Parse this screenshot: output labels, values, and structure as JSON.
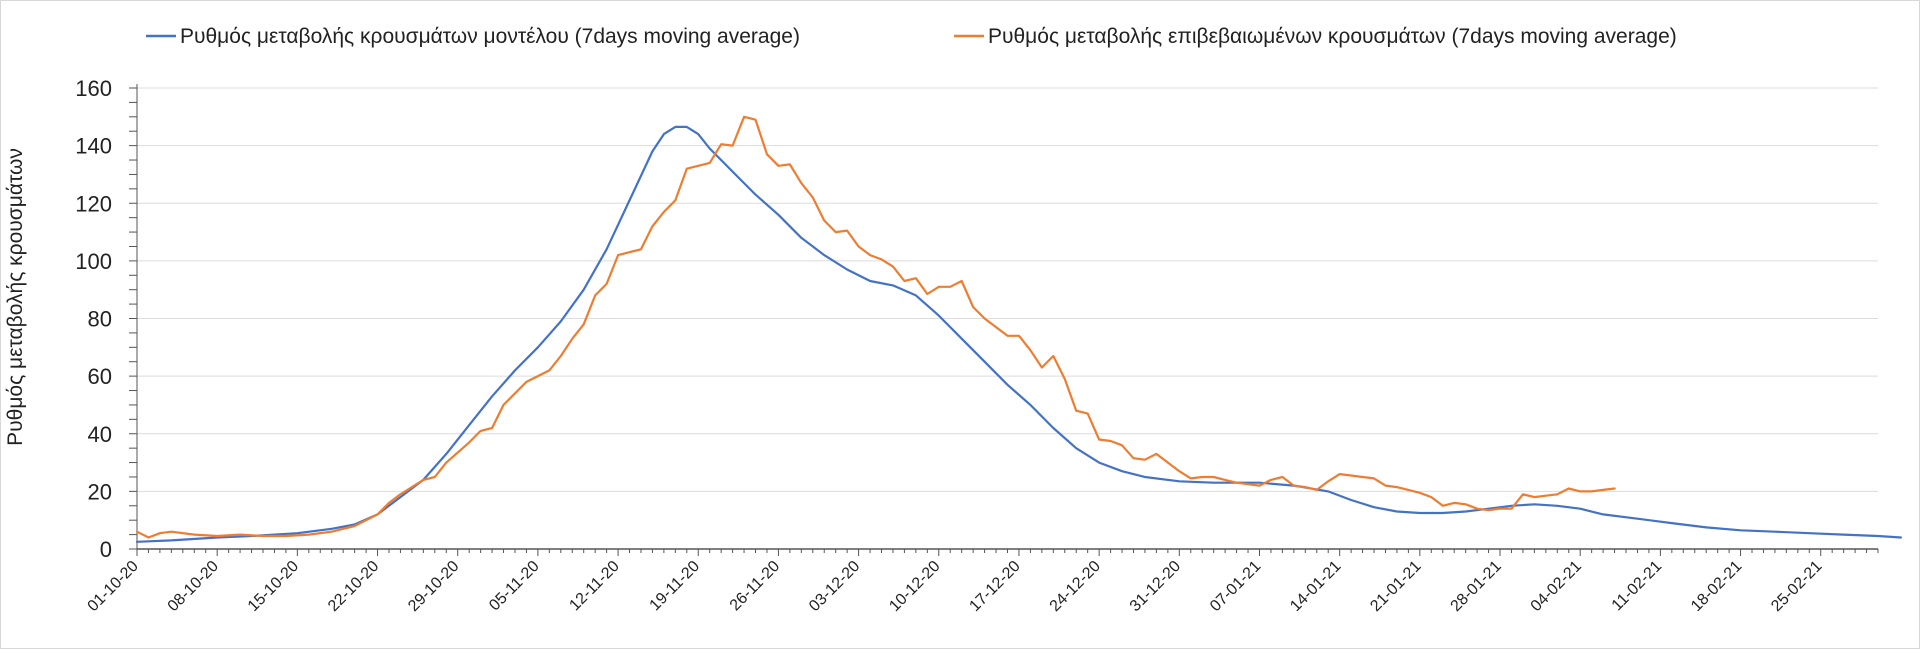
{
  "chart_data": {
    "type": "line",
    "title": "",
    "xlabel": "",
    "ylabel": "Ρυθμός μεταβολής κρουσμάτων",
    "ylim": [
      0,
      160
    ],
    "yticks": [
      0,
      20,
      40,
      60,
      80,
      100,
      120,
      140,
      160
    ],
    "grid": true,
    "legend_position": "top",
    "x_start": "01-10-20",
    "x_end": "02-03-21",
    "x_range_days": [
      0,
      152
    ],
    "xtick_labels": [
      "01-10-20",
      "08-10-20",
      "15-10-20",
      "22-10-20",
      "29-10-20",
      "05-11-20",
      "12-11-20",
      "19-11-20",
      "26-11-20",
      "03-12-20",
      "10-12-20",
      "17-12-20",
      "24-12-20",
      "31-12-20",
      "07-01-21",
      "14-01-21",
      "21-01-21",
      "28-01-21",
      "04-02-21",
      "11-02-21",
      "18-02-21",
      "25-02-21"
    ],
    "xtick_days": [
      0,
      7,
      14,
      21,
      28,
      35,
      42,
      49,
      56,
      63,
      70,
      77,
      84,
      91,
      98,
      105,
      112,
      119,
      126,
      133,
      140,
      147
    ],
    "series": [
      {
        "name": "Ρυθμός μεταβολής κρουσμάτων μοντέλου (7days moving average)",
        "color": "#4472C4",
        "points": [
          [
            0,
            2.5
          ],
          [
            3,
            3
          ],
          [
            7,
            4
          ],
          [
            10,
            4.5
          ],
          [
            14,
            5.5
          ],
          [
            17,
            7
          ],
          [
            19,
            8.5
          ],
          [
            21,
            12
          ],
          [
            23,
            18
          ],
          [
            25,
            24
          ],
          [
            27,
            33
          ],
          [
            29,
            43
          ],
          [
            31,
            53
          ],
          [
            33,
            62
          ],
          [
            35,
            70
          ],
          [
            37,
            79
          ],
          [
            39,
            90
          ],
          [
            41,
            104
          ],
          [
            43,
            121
          ],
          [
            45,
            138
          ],
          [
            46,
            144
          ],
          [
            47,
            146.5
          ],
          [
            48,
            146.5
          ],
          [
            49,
            144
          ],
          [
            50,
            139
          ],
          [
            52,
            131
          ],
          [
            54,
            123
          ],
          [
            56,
            116
          ],
          [
            58,
            108
          ],
          [
            60,
            102
          ],
          [
            62,
            97
          ],
          [
            64,
            93
          ],
          [
            66,
            91.5
          ],
          [
            68,
            88
          ],
          [
            70,
            81
          ],
          [
            72,
            73
          ],
          [
            74,
            65
          ],
          [
            76,
            57
          ],
          [
            78,
            50
          ],
          [
            80,
            42
          ],
          [
            82,
            35
          ],
          [
            84,
            30
          ],
          [
            86,
            27
          ],
          [
            88,
            25
          ],
          [
            91,
            23.5
          ],
          [
            94,
            23
          ],
          [
            98,
            23
          ],
          [
            101,
            22
          ],
          [
            104,
            20
          ],
          [
            106,
            17
          ],
          [
            108,
            14.5
          ],
          [
            110,
            13
          ],
          [
            112,
            12.5
          ],
          [
            114,
            12.5
          ],
          [
            116,
            13
          ],
          [
            118,
            14
          ],
          [
            120,
            15
          ],
          [
            122,
            15.5
          ],
          [
            124,
            15
          ],
          [
            126,
            14
          ],
          [
            128,
            12
          ],
          [
            131,
            10.5
          ],
          [
            134,
            9
          ],
          [
            137,
            7.5
          ],
          [
            140,
            6.5
          ],
          [
            143,
            6
          ],
          [
            146,
            5.5
          ],
          [
            149,
            5
          ],
          [
            152,
            4.5
          ],
          [
            154,
            4
          ]
        ]
      },
      {
        "name": "Ρυθμός μεταβολής επιβεβαιωμένων κρουσμάτων (7days moving average)",
        "color": "#ED7D31",
        "points": [
          [
            0,
            6
          ],
          [
            1,
            4
          ],
          [
            2,
            5.5
          ],
          [
            3,
            6
          ],
          [
            5,
            5
          ],
          [
            7,
            4.5
          ],
          [
            9,
            5
          ],
          [
            11,
            4.5
          ],
          [
            13,
            4.5
          ],
          [
            15,
            5
          ],
          [
            17,
            6
          ],
          [
            19,
            8
          ],
          [
            21,
            12
          ],
          [
            22,
            16
          ],
          [
            23,
            19
          ],
          [
            25,
            24
          ],
          [
            26,
            25
          ],
          [
            27,
            30
          ],
          [
            29,
            37
          ],
          [
            30,
            41
          ],
          [
            31,
            42
          ],
          [
            32,
            50
          ],
          [
            34,
            58
          ],
          [
            35,
            60
          ],
          [
            36,
            62
          ],
          [
            37,
            67
          ],
          [
            38,
            73
          ],
          [
            39,
            78
          ],
          [
            40,
            88
          ],
          [
            41,
            92
          ],
          [
            42,
            102
          ],
          [
            43,
            103
          ],
          [
            44,
            104
          ],
          [
            45,
            112
          ],
          [
            46,
            117
          ],
          [
            47,
            121
          ],
          [
            48,
            132
          ],
          [
            49,
            133
          ],
          [
            50,
            134
          ],
          [
            51,
            140.5
          ],
          [
            52,
            140
          ],
          [
            53,
            150
          ],
          [
            54,
            149
          ],
          [
            55,
            137
          ],
          [
            56,
            133
          ],
          [
            57,
            133.5
          ],
          [
            58,
            127
          ],
          [
            59,
            122
          ],
          [
            60,
            114
          ],
          [
            61,
            110
          ],
          [
            62,
            110.5
          ],
          [
            63,
            105
          ],
          [
            64,
            102
          ],
          [
            65,
            100.5
          ],
          [
            66,
            98
          ],
          [
            67,
            93
          ],
          [
            68,
            94
          ],
          [
            69,
            88.5
          ],
          [
            70,
            91
          ],
          [
            71,
            91
          ],
          [
            72,
            93
          ],
          [
            73,
            84
          ],
          [
            74,
            80
          ],
          [
            75,
            77
          ],
          [
            76,
            74
          ],
          [
            77,
            74
          ],
          [
            78,
            69
          ],
          [
            79,
            63
          ],
          [
            80,
            67
          ],
          [
            81,
            59
          ],
          [
            82,
            48
          ],
          [
            83,
            47
          ],
          [
            84,
            38
          ],
          [
            85,
            37.5
          ],
          [
            86,
            36
          ],
          [
            87,
            31.5
          ],
          [
            88,
            31
          ],
          [
            89,
            33
          ],
          [
            90,
            30
          ],
          [
            91,
            27
          ],
          [
            92,
            24.5
          ],
          [
            93,
            25
          ],
          [
            94,
            25
          ],
          [
            95,
            24
          ],
          [
            96,
            23
          ],
          [
            97,
            22.5
          ],
          [
            98,
            22
          ],
          [
            99,
            24
          ],
          [
            100,
            25
          ],
          [
            101,
            22
          ],
          [
            102,
            21.5
          ],
          [
            103,
            20.5
          ],
          [
            104,
            23.5
          ],
          [
            105,
            26
          ],
          [
            106,
            25.5
          ],
          [
            107,
            25
          ],
          [
            108,
            24.5
          ],
          [
            109,
            22
          ],
          [
            110,
            21.5
          ],
          [
            111,
            20.5
          ],
          [
            112,
            19.5
          ],
          [
            113,
            18
          ],
          [
            114,
            15
          ],
          [
            115,
            16
          ],
          [
            116,
            15.5
          ],
          [
            117,
            14
          ],
          [
            118,
            13.5
          ],
          [
            119,
            14
          ],
          [
            120,
            14
          ],
          [
            121,
            19
          ],
          [
            122,
            18
          ],
          [
            123,
            18.5
          ],
          [
            124,
            19
          ],
          [
            125,
            21
          ],
          [
            126,
            20
          ],
          [
            127,
            20
          ],
          [
            128,
            20.5
          ],
          [
            129,
            21
          ]
        ]
      }
    ]
  }
}
